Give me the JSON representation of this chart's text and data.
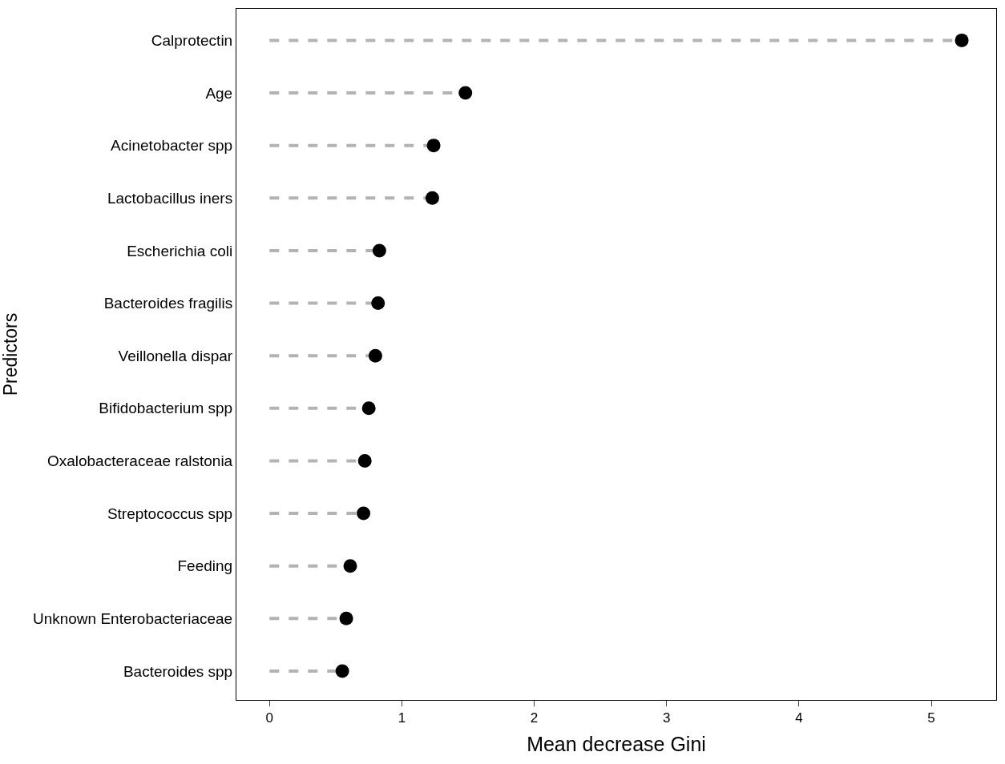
{
  "chart_data": {
    "type": "lollipop",
    "orientation": "horizontal",
    "xlabel": "Mean decrease Gini",
    "ylabel": "Predictors",
    "categories": [
      "Calprotectin",
      "Age",
      "Acinetobacter spp",
      "Lactobacillus iners",
      "Escherichia coli",
      "Bacteroides fragilis",
      "Veillonella dispar",
      "Bifidobacterium spp",
      "Oxalobacteraceae ralstonia",
      "Streptococcus spp",
      "Feeding",
      "Unknown Enterobacteriaceae",
      "Bacteroides spp"
    ],
    "values": [
      5.23,
      1.48,
      1.24,
      1.23,
      0.83,
      0.82,
      0.8,
      0.75,
      0.72,
      0.71,
      0.61,
      0.58,
      0.55
    ],
    "color": "#000000",
    "marker": "circle",
    "line_style": "dashed",
    "xlim": [
      -0.25,
      5.49
    ],
    "xticks": [
      0,
      1,
      2,
      3,
      4,
      5
    ]
  }
}
